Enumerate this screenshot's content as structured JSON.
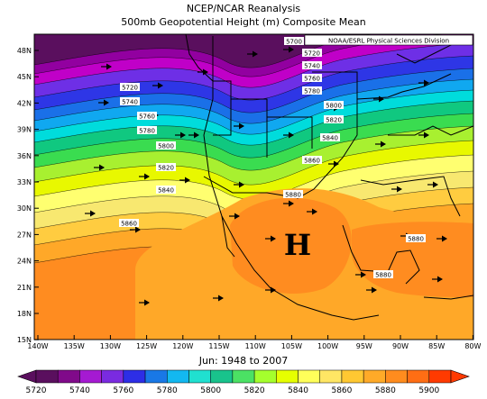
{
  "title_line1": "NCEP/NCAR Reanalysis",
  "title_line2": "500mb Geopotential Height (m) Composite Mean",
  "credit": "NOAA/ESRL Physical Sciences Division",
  "date_range": "Jun: 1948 to 2007",
  "high_marker": "H",
  "lat_labels": [
    "48N",
    "45N",
    "42N",
    "39N",
    "36N",
    "33N",
    "30N",
    "27N",
    "24N",
    "21N",
    "18N",
    "15N"
  ],
  "lon_labels": [
    "140W",
    "135W",
    "130W",
    "125W",
    "120W",
    "115W",
    "110W",
    "105W",
    "100W",
    "95W",
    "90W",
    "85W",
    "80W"
  ],
  "colorbar": {
    "labels": [
      "5720",
      "5740",
      "5760",
      "5780",
      "5800",
      "5820",
      "5840",
      "5860",
      "5880",
      "5900"
    ],
    "colors": [
      "#5a0f5e",
      "#800a8a",
      "#a51ad2",
      "#7a2be0",
      "#2d2ee6",
      "#1978e6",
      "#13b8f0",
      "#20e0d0",
      "#19c38c",
      "#4be164",
      "#a5ff2d",
      "#e6ff00",
      "#ffff5a",
      "#ffe664",
      "#ffc832",
      "#ffaa28",
      "#ff8c1e",
      "#ff6e14",
      "#ff3a00"
    ]
  },
  "contour_labels": [
    "5700",
    "5720",
    "5740",
    "5760",
    "5780",
    "5720",
    "5740",
    "5760",
    "5780",
    "5800",
    "5820",
    "5840",
    "5800",
    "5820",
    "5840",
    "5860",
    "5860",
    "5880",
    "5880",
    "5880"
  ],
  "band_colors": [
    "#9200a0",
    "#c000c8",
    "#6e2fe6",
    "#2e36e6",
    "#1a70e8",
    "#10a8f0",
    "#00dcdc",
    "#10c880",
    "#3adc50",
    "#a8f030",
    "#e8f800",
    "#ffff70",
    "#f8e870",
    "#ffcc40",
    "#ffa828",
    "#ff8c20"
  ]
}
